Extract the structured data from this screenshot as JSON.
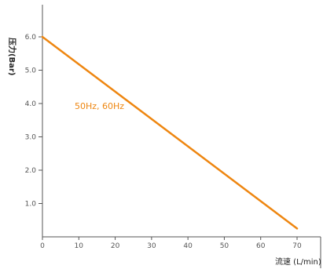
{
  "chart_data": {
    "type": "line",
    "title": "",
    "xlabel": "流速 (L/min)",
    "ylabel": "压力(Bar)",
    "xlim": [
      0,
      75
    ],
    "ylim": [
      0,
      6.8
    ],
    "x_ticks": [
      0,
      10,
      20,
      30,
      40,
      50,
      60,
      70
    ],
    "x_tick_labels": [
      "0",
      "10",
      "20",
      "30",
      "40",
      "50",
      "60",
      "70"
    ],
    "y_ticks": [
      1,
      2,
      3,
      4,
      5,
      6
    ],
    "y_tick_labels": [
      "1.0",
      "2.0",
      "3.0",
      "4.0",
      "5.0",
      "6.0"
    ],
    "grid": false,
    "series": [
      {
        "name": "50Hz, 60Hz",
        "color": "#EE8610",
        "x": [
          0,
          70
        ],
        "y": [
          6.0,
          0.25
        ]
      }
    ]
  }
}
